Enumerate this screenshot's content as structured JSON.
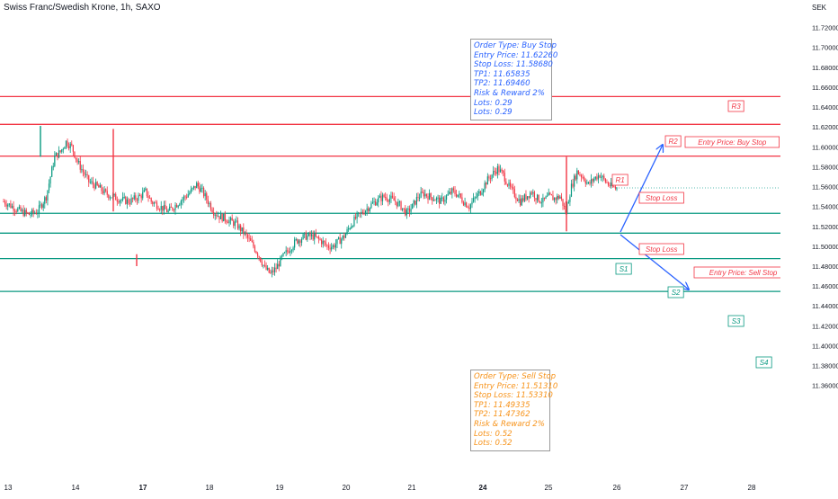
{
  "header": {
    "title": "Swiss Franc/Swedish Krone, 1h, SAXO",
    "currency": "SEK"
  },
  "colors": {
    "resistance": "#f23645",
    "support": "#089981",
    "candle_up": "#089981",
    "candle_down": "#f23645",
    "arrow": "#2962ff",
    "buy_text": "#2962ff",
    "sell_text": "#f7931a",
    "last_price_label": "#26a69a"
  },
  "buy_order": {
    "lines": [
      "Order Type: Buy Stop",
      "Entry Price: 11.62260",
      "Stop Loss: 11.58680",
      "TP1: 11.65835",
      "TP2: 11.69460",
      "Risk & Reward 2%",
      "Lots: 0.29",
      "Lots: 0.29"
    ]
  },
  "sell_order": {
    "lines": [
      "Order Type: Sell Stop",
      "Entry Price: 11.51310",
      "Stop Loss: 11.53310",
      "TP1: 11.49335",
      "TP2: 11.47362",
      "Risk & Reward 2%",
      "Lots: 0.52",
      "Lots: 0.52"
    ]
  },
  "annotations": {
    "r1": "R1",
    "r2": "R2",
    "r3": "R3",
    "s1": "S1",
    "s2": "S2",
    "s3": "S3",
    "s4": "S4",
    "stop_loss_upper": "Stop Loss",
    "stop_loss_lower": "Stop Loss",
    "entry_buy": "Entry Price: Buy Stop",
    "entry_sell": "Entry Price: Sell Stop"
  },
  "chart_data": {
    "type": "candlestick",
    "symbol": "CHFSEK",
    "last_price": 11.55863,
    "y_range": [
      11.35,
      11.73
    ],
    "y_ticks": [
      "11.72000",
      "11.70000",
      "11.68000",
      "11.66000",
      "11.64000",
      "11.62000",
      "11.60000",
      "11.58000",
      "11.56000",
      "11.54000",
      "11.52000",
      "11.50000",
      "11.48000",
      "11.46000",
      "11.44000",
      "11.42000",
      "11.40000",
      "11.38000",
      "11.36000"
    ],
    "x_ticks": [
      "13",
      "14",
      "17",
      "18",
      "19",
      "20",
      "21",
      "24",
      "25",
      "26",
      "27",
      "28"
    ],
    "levels": [
      {
        "name": "R3",
        "value": 11.65053,
        "label": "11.65053",
        "kind": "resistance"
      },
      {
        "name": "R2",
        "value": 11.62258,
        "label": "11.62258",
        "kind": "resistance"
      },
      {
        "name": "R1",
        "value": 11.59063,
        "label": "11.59063",
        "kind": "resistance"
      },
      {
        "name": "S1",
        "value": 11.53312,
        "label": "11.53312",
        "kind": "support"
      },
      {
        "name": "S2",
        "value": 11.51316,
        "label": "11.51316",
        "kind": "support"
      },
      {
        "name": "S3",
        "value": 11.4876,
        "label": "11.48760",
        "kind": "support"
      },
      {
        "name": "S4",
        "value": 11.45458,
        "label": "11.45458",
        "kind": "support"
      }
    ],
    "price_path": [
      [
        0,
        11.545
      ],
      [
        3,
        11.54
      ],
      [
        6,
        11.535
      ],
      [
        9,
        11.532
      ],
      [
        12,
        11.535
      ],
      [
        15,
        11.55
      ],
      [
        18,
        11.59
      ],
      [
        20,
        11.595
      ],
      [
        22,
        11.605
      ],
      [
        24,
        11.6
      ],
      [
        26,
        11.585
      ],
      [
        28,
        11.575
      ],
      [
        30,
        11.565
      ],
      [
        33,
        11.56
      ],
      [
        36,
        11.553
      ],
      [
        40,
        11.548
      ],
      [
        44,
        11.545
      ],
      [
        48,
        11.55
      ],
      [
        50,
        11.555
      ],
      [
        52,
        11.545
      ],
      [
        55,
        11.54
      ],
      [
        58,
        11.535
      ],
      [
        60,
        11.54
      ],
      [
        62,
        11.545
      ],
      [
        64,
        11.55
      ],
      [
        66,
        11.555
      ],
      [
        68,
        11.562
      ],
      [
        70,
        11.555
      ],
      [
        72,
        11.545
      ],
      [
        74,
        11.535
      ],
      [
        76,
        11.53
      ],
      [
        78,
        11.528
      ],
      [
        80,
        11.525
      ],
      [
        82,
        11.522
      ],
      [
        85,
        11.512
      ],
      [
        88,
        11.5
      ],
      [
        90,
        11.49
      ],
      [
        92,
        11.478
      ],
      [
        94,
        11.472
      ],
      [
        96,
        11.478
      ],
      [
        98,
        11.488
      ],
      [
        100,
        11.495
      ],
      [
        103,
        11.505
      ],
      [
        106,
        11.51
      ],
      [
        109,
        11.51
      ],
      [
        112,
        11.505
      ],
      [
        114,
        11.5
      ],
      [
        116,
        11.5
      ],
      [
        118,
        11.505
      ],
      [
        120,
        11.51
      ],
      [
        122,
        11.52
      ],
      [
        124,
        11.528
      ],
      [
        126,
        11.533
      ],
      [
        128,
        11.538
      ],
      [
        130,
        11.543
      ],
      [
        132,
        11.547
      ],
      [
        134,
        11.55
      ],
      [
        136,
        11.548
      ],
      [
        138,
        11.545
      ],
      [
        140,
        11.54
      ],
      [
        142,
        11.533
      ],
      [
        144,
        11.54
      ],
      [
        146,
        11.55
      ],
      [
        148,
        11.553
      ],
      [
        150,
        11.55
      ],
      [
        152,
        11.548
      ],
      [
        154,
        11.545
      ],
      [
        156,
        11.55
      ],
      [
        158,
        11.555
      ],
      [
        160,
        11.552
      ],
      [
        162,
        11.545
      ],
      [
        164,
        11.54
      ],
      [
        166,
        11.548
      ],
      [
        168,
        11.555
      ],
      [
        170,
        11.565
      ],
      [
        172,
        11.572
      ],
      [
        174,
        11.578
      ],
      [
        176,
        11.572
      ],
      [
        178,
        11.56
      ],
      [
        180,
        11.552
      ],
      [
        182,
        11.545
      ],
      [
        184,
        11.55
      ],
      [
        186,
        11.555
      ],
      [
        188,
        11.548
      ],
      [
        190,
        11.545
      ],
      [
        192,
        11.55
      ],
      [
        194,
        11.548
      ],
      [
        196,
        11.55
      ],
      [
        198,
        11.535
      ],
      [
        200,
        11.56
      ],
      [
        202,
        11.575
      ],
      [
        204,
        11.57
      ],
      [
        206,
        11.562
      ],
      [
        208,
        11.568
      ],
      [
        210,
        11.572
      ],
      [
        212,
        11.565
      ],
      [
        214,
        11.56
      ],
      [
        216,
        11.558
      ]
    ],
    "x_span": 334,
    "x_tick_positions": [
      0,
      32,
      64,
      96,
      128,
      160,
      192,
      224,
      256,
      288,
      320,
      350
    ]
  }
}
